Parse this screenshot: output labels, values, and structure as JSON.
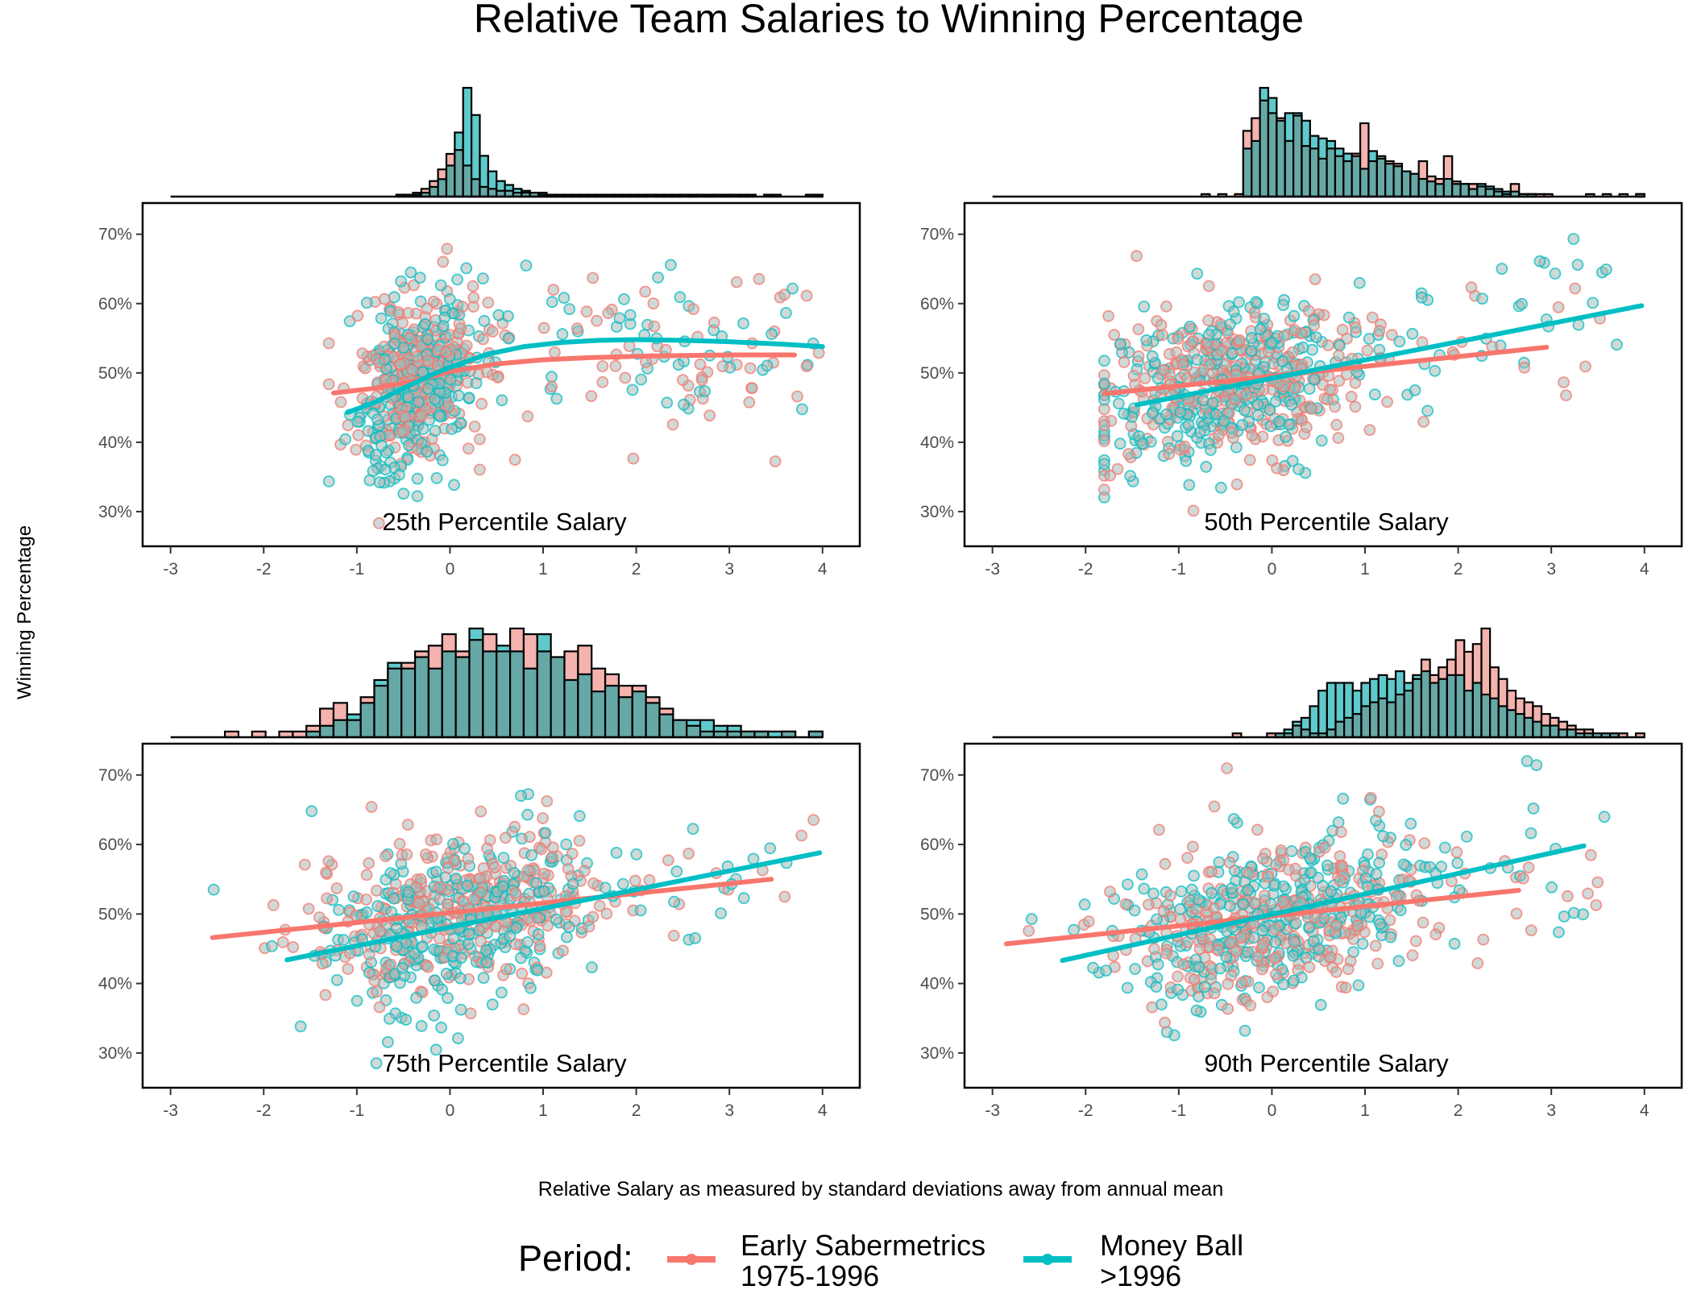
{
  "title": "Relative Team Salaries to Winning Percentage",
  "xlabel": "Relative Salary as measured by standard deviations away from annual mean",
  "ylabel": "Winning Percentage",
  "legend": {
    "title": "Period:",
    "placement": "bottom",
    "entries": [
      {
        "line1": "Early Sabermetrics",
        "line2": "1975-1996",
        "color": "#F8766D"
      },
      {
        "line1": "Money Ball",
        "line2": ">1996",
        "color": "#00BFC4"
      }
    ]
  },
  "colors": {
    "early": "#F8766D",
    "moneyball": "#00BFC4",
    "hist_early_fill": "#F4B3AE",
    "hist_money_fill": "#5FC9CB",
    "hist_overlap_fill": "#66A8A6"
  },
  "chart_data": [
    {
      "type": "scatter",
      "label": "25th Percentile Salary",
      "xlim": [
        -3.3,
        4.4
      ],
      "ylim": [
        0.25,
        0.745
      ],
      "xticks": [
        -3,
        -2,
        -1,
        0,
        1,
        2,
        3,
        4
      ],
      "yticks": [
        0.3,
        0.4,
        0.5,
        0.6,
        0.7
      ],
      "ytick_labels": [
        "30%",
        "40%",
        "50%",
        "60%",
        "70%"
      ],
      "cloud": {
        "center": -0.4,
        "xsd": 0.32,
        "xmin": -1.3,
        "tail_max": 4.0,
        "tail_share": 0.22
      },
      "series": [
        {
          "name": "Early Sabermetrics 1975-1996",
          "smooth": {
            "x": [
              -1.25,
              -0.8,
              -0.4,
              0,
              0.5,
              1,
              1.5,
              2,
              2.5,
              3,
              3.5,
              3.7
            ],
            "y": [
              0.471,
              0.478,
              0.488,
              0.502,
              0.513,
              0.519,
              0.522,
              0.524,
              0.525,
              0.526,
              0.526,
              0.526
            ]
          }
        },
        {
          "name": "Money Ball >1996",
          "smooth": {
            "x": [
              -1.1,
              -0.8,
              -0.5,
              -0.2,
              0,
              0.4,
              0.8,
              1.2,
              1.6,
              2,
              2.5,
              3,
              3.5,
              4
            ],
            "y": [
              0.443,
              0.458,
              0.478,
              0.497,
              0.508,
              0.527,
              0.538,
              0.544,
              0.547,
              0.548,
              0.547,
              0.545,
              0.542,
              0.538
            ]
          }
        }
      ],
      "hist_early": [
        0,
        0,
        0,
        0,
        0,
        0,
        0,
        0,
        0,
        0,
        0,
        0,
        0,
        0,
        0,
        0,
        0,
        0,
        0,
        0,
        0,
        0,
        0,
        0,
        0,
        0,
        0,
        1,
        1,
        2,
        4,
        8,
        14,
        22,
        24,
        16,
        9,
        5,
        4,
        3,
        3,
        2,
        2,
        2,
        1,
        1,
        1,
        1,
        1,
        1,
        1,
        1,
        1,
        1,
        1,
        1,
        1,
        0,
        1,
        1,
        1,
        0,
        1,
        0,
        1,
        0,
        1,
        0,
        1,
        0,
        0,
        0,
        0,
        0,
        0,
        0,
        0,
        1
      ],
      "hist_money": [
        0,
        0,
        0,
        0,
        0,
        0,
        0,
        0,
        0,
        0,
        0,
        0,
        0,
        0,
        0,
        0,
        0,
        0,
        0,
        0,
        0,
        0,
        0,
        0,
        0,
        0,
        0,
        0,
        0,
        1,
        2,
        5,
        9,
        16,
        33,
        56,
        42,
        21,
        13,
        8,
        6,
        4,
        3,
        2,
        2,
        1,
        1,
        1,
        1,
        1,
        1,
        1,
        1,
        1,
        1,
        1,
        1,
        1,
        1,
        1,
        1,
        1,
        1,
        1,
        1,
        1,
        1,
        1,
        1,
        1,
        0,
        1,
        1,
        0,
        0,
        0,
        1,
        1
      ]
    },
    {
      "type": "scatter",
      "label": "50th Percentile Salary",
      "xlim": [
        -3.3,
        4.4
      ],
      "ylim": [
        0.25,
        0.745
      ],
      "xticks": [
        -3,
        -2,
        -1,
        0,
        1,
        2,
        3,
        4
      ],
      "yticks": [
        0.3,
        0.4,
        0.5,
        0.6,
        0.7
      ],
      "ytick_labels": [
        "30%",
        "40%",
        "50%",
        "60%",
        "70%"
      ],
      "cloud": {
        "center": -0.5,
        "xsd": 0.75,
        "xmin": -1.8,
        "tail_max": 3.8,
        "tail_share": 0.1
      },
      "series": [
        {
          "name": "Early Sabermetrics 1975-1996",
          "smooth": {
            "x": [
              -1.8,
              2.95
            ],
            "y": [
              0.47,
              0.537
            ]
          }
        },
        {
          "name": "Money Ball >1996",
          "smooth": {
            "x": [
              -1.45,
              3.97
            ],
            "y": [
              0.454,
              0.597
            ]
          }
        }
      ],
      "hist_early": [
        0,
        0,
        0,
        0,
        0,
        0,
        0,
        0,
        0,
        0,
        0,
        0,
        0,
        0,
        0,
        0,
        0,
        0,
        0,
        0,
        0,
        0,
        0,
        0,
        0,
        1,
        0,
        1,
        0,
        1,
        26,
        31,
        38,
        33,
        31,
        22,
        32,
        20,
        19,
        15,
        19,
        16,
        14,
        17,
        29,
        14,
        15,
        14,
        13,
        10,
        9,
        14,
        8,
        7,
        16,
        6,
        5,
        5,
        4,
        3,
        2,
        1,
        5,
        1,
        1,
        1,
        1,
        0,
        0,
        0,
        0,
        1,
        0,
        1,
        0,
        1,
        0,
        1
      ],
      "hist_money": [
        0,
        0,
        0,
        0,
        0,
        0,
        0,
        0,
        0,
        0,
        0,
        0,
        0,
        0,
        0,
        0,
        0,
        0,
        0,
        0,
        0,
        0,
        0,
        0,
        0,
        0,
        0,
        0,
        0,
        0,
        19,
        22,
        43,
        39,
        30,
        33,
        33,
        30,
        24,
        23,
        22,
        19,
        17,
        16,
        11,
        18,
        16,
        13,
        12,
        10,
        9,
        7,
        6,
        5,
        7,
        5,
        5,
        3,
        5,
        4,
        3,
        2,
        2,
        1,
        1,
        0,
        0,
        0,
        0,
        0,
        0,
        0,
        0,
        0,
        0,
        0,
        0,
        1
      ]
    },
    {
      "type": "scatter",
      "label": "75th Percentile Salary",
      "xlim": [
        -3.3,
        4.4
      ],
      "ylim": [
        0.25,
        0.745
      ],
      "xticks": [
        -3,
        -2,
        -1,
        0,
        1,
        2,
        3,
        4
      ],
      "yticks": [
        0.3,
        0.4,
        0.5,
        0.6,
        0.7
      ],
      "ytick_labels": [
        "30%",
        "40%",
        "50%",
        "60%",
        "70%"
      ],
      "cloud": {
        "center": 0.0,
        "xsd": 0.75,
        "xmin": -2.6,
        "tail_max": 4.0,
        "tail_share": 0.08
      },
      "series": [
        {
          "name": "Early Sabermetrics 1975-1996",
          "smooth": {
            "x": [
              -2.55,
              3.45
            ],
            "y": [
              0.466,
              0.55
            ]
          }
        },
        {
          "name": "Money Ball >1996",
          "smooth": {
            "x": [
              -1.75,
              3.97
            ],
            "y": [
              0.434,
              0.588
            ]
          }
        }
      ],
      "hist_early": [
        0,
        0,
        0,
        0,
        1,
        0,
        1,
        0,
        1,
        1,
        2,
        5,
        6,
        3,
        7,
        9,
        12,
        13,
        15,
        16,
        18,
        15,
        17,
        18,
        15,
        19,
        18,
        15,
        14,
        15,
        16,
        12,
        11,
        9,
        9,
        7,
        5,
        3,
        2,
        1,
        1,
        1,
        1,
        1,
        0,
        1,
        0,
        1
      ],
      "hist_money": [
        0,
        0,
        0,
        0,
        0,
        0,
        0,
        0,
        0,
        0,
        1,
        2,
        3,
        4,
        6,
        10,
        13,
        12,
        14,
        12,
        15,
        14,
        19,
        15,
        16,
        15,
        12,
        18,
        14,
        10,
        11,
        8,
        9,
        7,
        8,
        6,
        4,
        3,
        3,
        3,
        2,
        2,
        1,
        1,
        1,
        1,
        0,
        1
      ]
    },
    {
      "type": "scatter",
      "label": "90th Percentile Salary",
      "xlim": [
        -3.3,
        4.4
      ],
      "ylim": [
        0.25,
        0.745
      ],
      "xticks": [
        -3,
        -2,
        -1,
        0,
        1,
        2,
        3,
        4
      ],
      "yticks": [
        0.3,
        0.4,
        0.5,
        0.6,
        0.7
      ],
      "ytick_labels": [
        "30%",
        "40%",
        "50%",
        "60%",
        "70%"
      ],
      "cloud": {
        "center": 0.0,
        "xsd": 0.85,
        "xmin": -2.9,
        "tail_max": 3.6,
        "tail_share": 0.06
      },
      "series": [
        {
          "name": "Early Sabermetrics 1975-1996",
          "smooth": {
            "x": [
              -2.85,
              2.65
            ],
            "y": [
              0.457,
              0.534
            ]
          }
        },
        {
          "name": "Money Ball >1996",
          "smooth": {
            "x": [
              -2.25,
              3.35
            ],
            "y": [
              0.433,
              0.598
            ]
          }
        }
      ],
      "hist_early": [
        0,
        0,
        0,
        0,
        0,
        0,
        0,
        0,
        0,
        0,
        0,
        0,
        0,
        0,
        0,
        0,
        0,
        0,
        0,
        0,
        0,
        0,
        0,
        0,
        0,
        0,
        0,
        0,
        1,
        0,
        0,
        0,
        1,
        1,
        1,
        3,
        2,
        1,
        1,
        2,
        4,
        5,
        6,
        8,
        9,
        10,
        9,
        11,
        12,
        15,
        20,
        16,
        18,
        20,
        25,
        22,
        24,
        28,
        18,
        15,
        12,
        10,
        9,
        8,
        6,
        5,
        4,
        3,
        2,
        2,
        1,
        1,
        1,
        1,
        0,
        1
      ],
      "hist_money": [
        0,
        0,
        0,
        0,
        0,
        0,
        0,
        0,
        0,
        0,
        0,
        0,
        0,
        0,
        0,
        0,
        0,
        0,
        0,
        0,
        0,
        0,
        0,
        0,
        0,
        0,
        0,
        0,
        0,
        0,
        0,
        0,
        0,
        1,
        2,
        4,
        5,
        8,
        12,
        14,
        14,
        14,
        12,
        14,
        15,
        16,
        15,
        17,
        14,
        16,
        17,
        14,
        15,
        16,
        16,
        12,
        14,
        11,
        10,
        8,
        7,
        6,
        5,
        4,
        3,
        3,
        2,
        2,
        1,
        1,
        1,
        1,
        1,
        0,
        0,
        0
      ]
    }
  ]
}
